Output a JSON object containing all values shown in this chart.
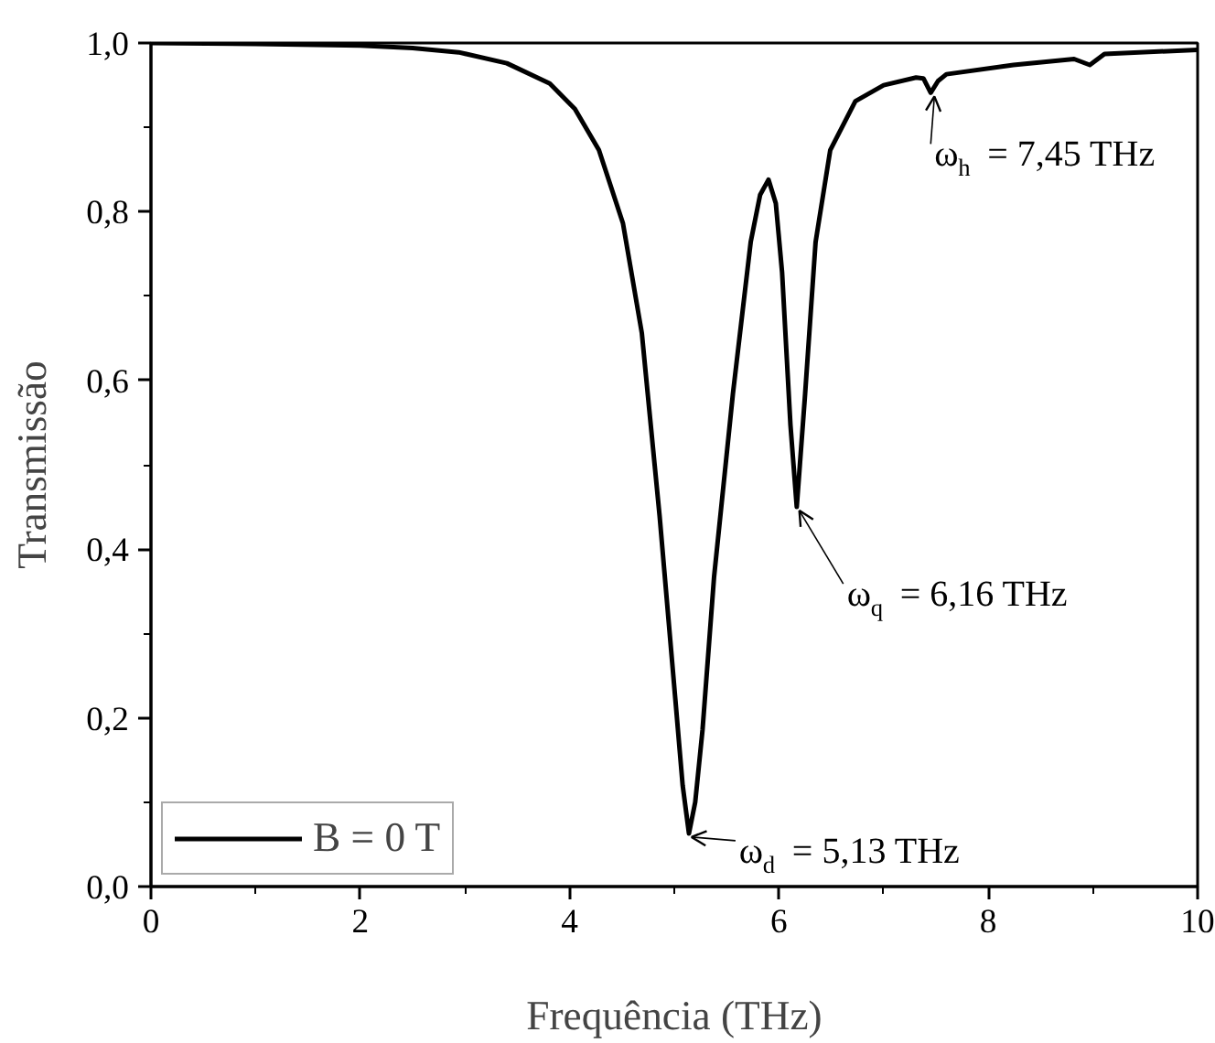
{
  "chart_data": {
    "type": "line",
    "xlabel": "Frequência (THz)",
    "ylabel": "Transmissão",
    "xlim": [
      0,
      10
    ],
    "ylim": [
      0,
      1
    ],
    "xticks": [
      0,
      2,
      4,
      6,
      8,
      10
    ],
    "yticks": [
      {
        "value": 0,
        "label": "0,0"
      },
      {
        "value": 0.2,
        "label": "0,2"
      },
      {
        "value": 0.4,
        "label": "0,4"
      },
      {
        "value": 0.6,
        "label": "0,6"
      },
      {
        "value": 0.8,
        "label": "0,8"
      },
      {
        "value": 1,
        "label": "1,0"
      }
    ],
    "grid": false,
    "legend": "bottom left",
    "marker": "none",
    "line_style": "solid",
    "series": [
      {
        "name": "B = 0 T",
        "color": "#000000",
        "x": [
          0,
          1,
          2,
          2.5,
          2.94,
          3.4,
          3.81,
          4.05,
          4.28,
          4.51,
          4.69,
          4.86,
          5.01,
          5.08,
          5.14,
          5.2,
          5.27,
          5.38,
          5.56,
          5.73,
          5.82,
          5.9,
          5.97,
          6.03,
          6.11,
          6.17,
          6.25,
          6.35,
          6.49,
          6.73,
          7.0,
          7.31,
          7.38,
          7.45,
          7.52,
          7.6,
          8.24,
          8.82,
          8.97,
          9.11,
          10
        ],
        "values": [
          1.0,
          0.999,
          0.997,
          0.994,
          0.989,
          0.976,
          0.952,
          0.922,
          0.873,
          0.786,
          0.656,
          0.439,
          0.222,
          0.12,
          0.063,
          0.1,
          0.186,
          0.367,
          0.584,
          0.764,
          0.82,
          0.838,
          0.81,
          0.728,
          0.547,
          0.45,
          0.584,
          0.764,
          0.873,
          0.931,
          0.95,
          0.959,
          0.958,
          0.941,
          0.955,
          0.963,
          0.974,
          0.981,
          0.974,
          0.987,
          0.992
        ]
      }
    ],
    "annotations": [
      {
        "text": "ω$_{d}$ = 5,13 THz",
        "x": 5.13,
        "y": 0.063
      },
      {
        "text": "ω$_{q}$ = 6,16 THz",
        "x": 6.16,
        "y": 0.45
      },
      {
        "text": "ω$_{h}$ = 7,45 THz",
        "x": 7.45,
        "y": 0.941
      }
    ]
  }
}
